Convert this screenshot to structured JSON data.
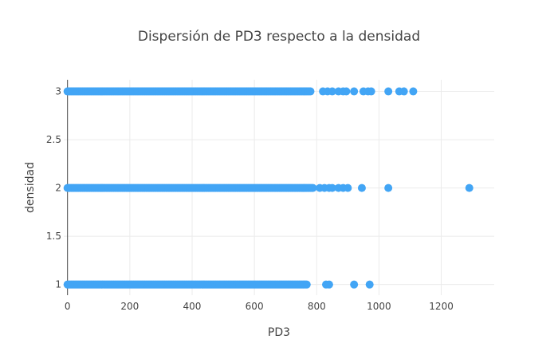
{
  "chart_data": {
    "type": "scatter",
    "title": "Dispersión de PD3 respecto a la densidad",
    "xlabel": "PD3",
    "ylabel": "densidad",
    "xlim": [
      -12,
      1370
    ],
    "ylim": [
      0.89,
      3.12
    ],
    "x_ticks": [
      0,
      200,
      400,
      600,
      800,
      1000,
      1200
    ],
    "y_ticks": [
      1,
      1.5,
      2,
      2.5,
      3
    ],
    "y_tick_labels": [
      "1",
      "1.5",
      "2",
      "2.5",
      "3"
    ],
    "grid": true,
    "legend": "none",
    "marker_color": "#42A5F5",
    "series": [
      {
        "y": 3,
        "dense_range": [
          0,
          780
        ],
        "x": [
          820,
          835,
          850,
          870,
          885,
          895,
          920,
          950,
          965,
          975,
          1030,
          1065,
          1080,
          1110
        ]
      },
      {
        "y": 2,
        "dense_range": [
          0,
          790
        ],
        "x": [
          810,
          825,
          840,
          850,
          870,
          885,
          900,
          945,
          1030,
          1290
        ]
      },
      {
        "y": 1,
        "dense_range": [
          0,
          770
        ],
        "x": [
          830,
          840,
          920,
          970
        ]
      }
    ]
  }
}
